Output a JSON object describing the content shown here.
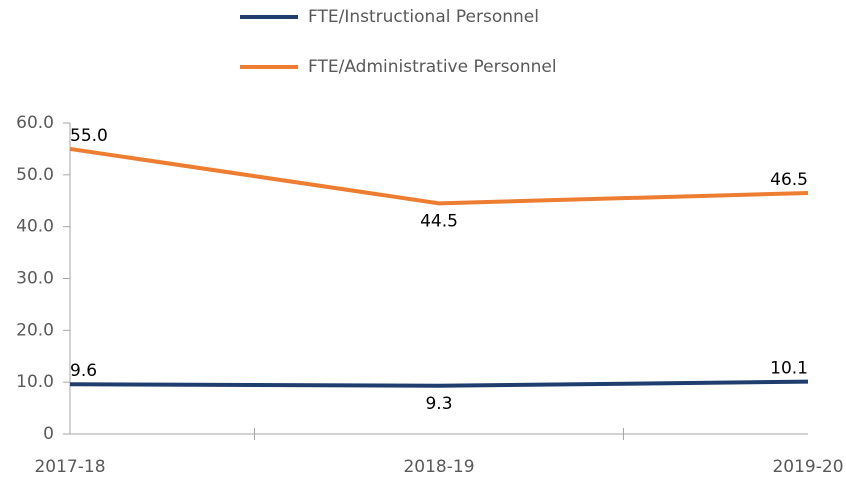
{
  "chart_data": {
    "type": "line",
    "categories": [
      "2017-18",
      "2018-19",
      "2019-20"
    ],
    "series": [
      {
        "name": "FTE/Instructional Personnel",
        "color": "#1f3e6e",
        "values": [
          9.6,
          9.3,
          10.1
        ],
        "value_labels": [
          "9.6",
          "9.3",
          "10.1"
        ]
      },
      {
        "name": "FTE/Administrative Personnel",
        "color": "#ed7d31",
        "values": [
          55,
          44.5,
          46.5
        ],
        "value_labels": [
          "55.0",
          "44.5",
          "46.5"
        ]
      }
    ],
    "ylim": [
      0,
      60
    ],
    "yticks": [
      0,
      {
        "value": 10,
        "label": "10.0"
      },
      {
        "value": 20,
        "label": "20.0"
      },
      {
        "value": 30,
        "label": "30.0"
      },
      {
        "value": 40,
        "label": "40.0"
      },
      {
        "value": 50,
        "label": "50.0"
      },
      {
        "value": 60,
        "label": "60.0"
      }
    ],
    "legend": "top"
  }
}
